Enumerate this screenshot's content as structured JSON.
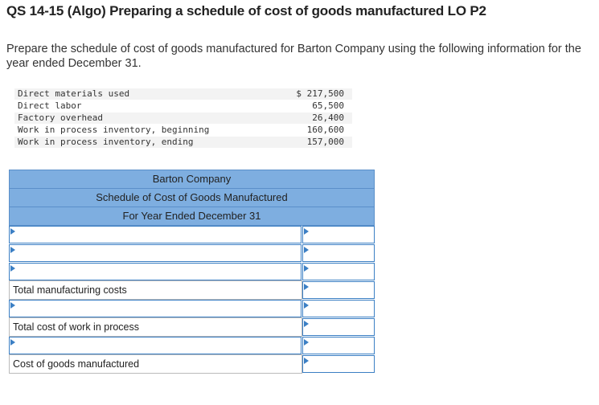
{
  "header": {
    "title": "QS 14-15 (Algo) Preparing a schedule of cost of goods manufactured LO P2",
    "instructions": "Prepare the schedule of cost of goods manufactured for Barton Company using the following information for the year ended December 31."
  },
  "info": {
    "rows": [
      [
        "Direct materials used",
        "$ 217,500"
      ],
      [
        "Direct labor",
        "65,500"
      ],
      [
        "Factory overhead",
        "26,400"
      ],
      [
        "Work in process inventory, beginning",
        "160,600"
      ],
      [
        "Work in process inventory, ending",
        "157,000"
      ]
    ]
  },
  "schedule": {
    "company": "Barton Company",
    "title": "Schedule of Cost of Goods Manufactured",
    "period": "For Year Ended December 31",
    "rows": [
      {
        "input": true
      },
      {
        "input": true
      },
      {
        "input": true
      },
      {
        "label": "Total manufacturing costs"
      },
      {
        "input": true
      },
      {
        "label": "Total cost of work in process"
      },
      {
        "input": true
      },
      {
        "label": "Cost of goods manufactured"
      }
    ]
  }
}
